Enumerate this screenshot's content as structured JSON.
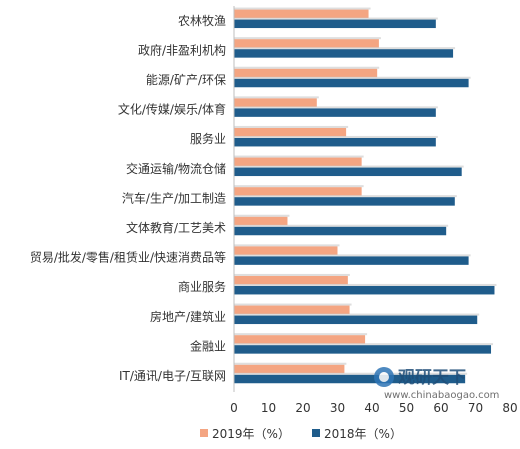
{
  "chart_data": {
    "type": "bar",
    "orientation": "horizontal",
    "categories": [
      "农林牧渔",
      "政府/非盈利机构",
      "能源/矿产/环保",
      "文化/传媒/娱乐/体育",
      "服务业",
      "交通运输/物流仓储",
      "汽车/生产/加工制造",
      "文体教育/工艺美术",
      "贸易/批发/零售/租赁业/快速消费品等",
      "商业服务",
      "房地产/建筑业",
      "金融业",
      "IT/通讯/电子/互联网"
    ],
    "series": [
      {
        "name": "2019年（%）",
        "color": "#f4a582",
        "values": [
          39,
          42,
          41.5,
          24,
          32.5,
          37,
          37,
          15.5,
          30,
          33,
          33.5,
          38,
          32
        ]
      },
      {
        "name": "2018年（%）",
        "color": "#1f5c8b",
        "values": [
          58.5,
          63.5,
          68,
          58.5,
          58.5,
          66,
          64,
          61.5,
          68,
          75.5,
          70.5,
          74.5,
          67
        ]
      }
    ],
    "xlim": [
      0,
      80
    ],
    "xticks": [
      0,
      10,
      20,
      30,
      40,
      50,
      60,
      70,
      80
    ],
    "grid": false,
    "legend_position": "bottom"
  },
  "watermark": {
    "brand": "观研天下",
    "url": "www.chinabaogao.com"
  }
}
